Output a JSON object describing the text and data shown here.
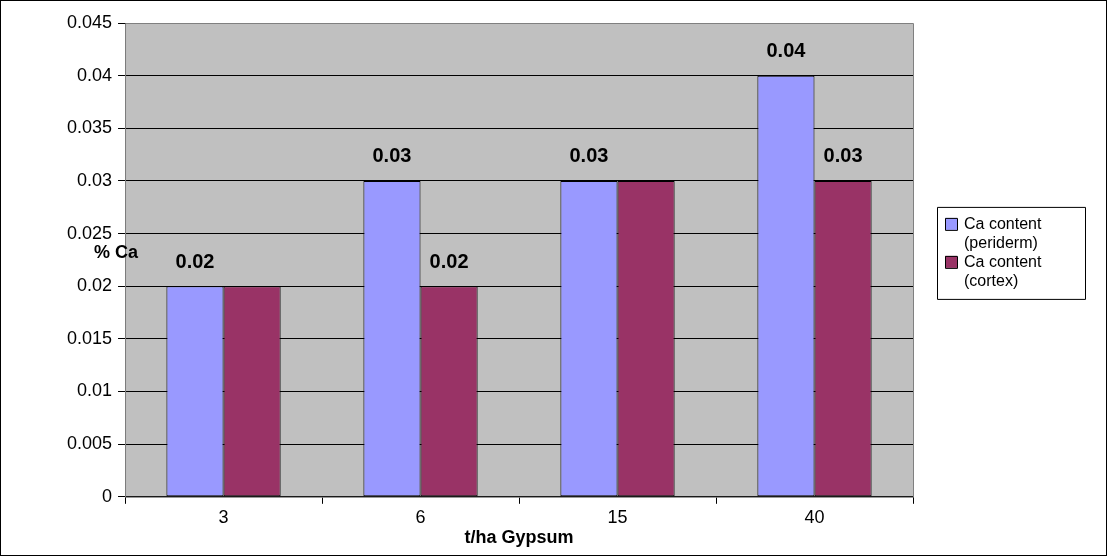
{
  "chart_data": {
    "type": "bar",
    "xlabel": "t/ha Gypsum",
    "ylabel": "% Ca",
    "categories": [
      "3",
      "6",
      "15",
      "40"
    ],
    "series": [
      {
        "name": "Ca content (periderm)",
        "color": "#9999ff",
        "values": [
          0.02,
          0.03,
          0.03,
          0.04
        ],
        "value_labels": [
          "0.02",
          "0.03",
          "0.03",
          "0.04"
        ]
      },
      {
        "name": "Ca content (cortex)",
        "color": "#993366",
        "values": [
          0.02,
          0.02,
          0.03,
          0.03
        ],
        "value_labels": [
          null,
          "0.02",
          null,
          "0.03"
        ]
      }
    ],
    "ylim": [
      0,
      0.045
    ],
    "yticks": [
      0,
      0.005,
      0.01,
      0.015,
      0.02,
      0.025,
      0.03,
      0.035,
      0.04,
      0.045
    ],
    "grid": "y",
    "legend": "right"
  }
}
